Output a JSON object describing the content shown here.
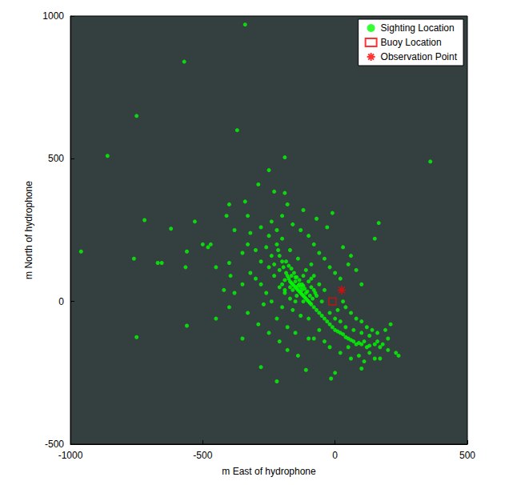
{
  "chart_data": {
    "type": "scatter",
    "x_label": "m East of hydrophone",
    "y_label": "m North of hydrophone",
    "xlim": [
      -1000,
      500
    ],
    "xticks": [
      -1000,
      -500,
      0,
      500
    ],
    "ylim": [
      -500,
      1000
    ],
    "yticks": [
      -500,
      0,
      500,
      1000
    ],
    "grid": false,
    "legend": "upper right",
    "series": [
      {
        "name": "Sighting Location",
        "color": "#00ff00",
        "marker": "circle",
        "x": [
          -340,
          -570,
          -750,
          -860,
          -370,
          -190,
          360,
          -960,
          -720,
          -760,
          -670,
          -655,
          -620,
          -530,
          -560,
          -565,
          -750,
          -560,
          -450,
          -280,
          -220,
          -110,
          -15,
          0,
          100,
          230,
          165,
          150,
          -10,
          -290,
          -250,
          -190,
          -230,
          -330,
          -340,
          -400,
          -480,
          -470,
          -400,
          -395,
          -160,
          -155,
          -150,
          -145,
          -140,
          -135,
          -130,
          -125,
          -120,
          -115,
          -110,
          -105,
          -100,
          -95,
          -90,
          -170,
          -175,
          -180,
          -185,
          -165,
          -150,
          -140,
          -130,
          -160,
          -170,
          -145,
          -125,
          -120,
          -110,
          -135,
          -150,
          -165,
          -190,
          -195,
          -200,
          -210,
          -215,
          -220,
          -120,
          -80,
          -70,
          -60,
          -50,
          -40,
          -30,
          -20,
          -10,
          0,
          10,
          20,
          30,
          40,
          50,
          60,
          70,
          80,
          90,
          100,
          110,
          120,
          130,
          150,
          160,
          170,
          180,
          200,
          140,
          120,
          100,
          80,
          60,
          40,
          30,
          10,
          -20,
          -60,
          -80,
          -40,
          -20,
          20,
          60,
          50,
          90,
          150,
          110,
          -100,
          -130,
          -160,
          -200,
          -240,
          -260,
          -280,
          -300,
          -320,
          -280,
          -250,
          -230,
          -210,
          -190,
          -240,
          -260,
          -300,
          -330,
          -350,
          -320,
          -280,
          -240,
          -200,
          -160,
          -130,
          -100,
          -80,
          -60,
          -40,
          -20,
          0,
          20,
          30,
          60,
          50,
          80,
          100,
          -30,
          -70,
          -120,
          -180,
          -220,
          -350,
          -380,
          -400,
          -330,
          -290,
          -250,
          -210,
          -180,
          -140,
          -100,
          -180,
          -150,
          -350,
          -420,
          -450,
          -380,
          -410,
          -500,
          -220,
          -270,
          -60,
          -40,
          -80,
          -90,
          -200,
          -250,
          -170,
          -140,
          -110,
          -90,
          -70,
          -50,
          0,
          20,
          40,
          70,
          100,
          130,
          160,
          190,
          210,
          240,
          200,
          170,
          130,
          -150,
          -170,
          -190,
          -200,
          -210,
          -230,
          -120,
          -100,
          -90,
          -80,
          -75,
          -85,
          -95,
          -105,
          -115,
          -125,
          -135,
          -145,
          -155,
          -165,
          -175,
          -185
        ],
        "values": [
          970,
          840,
          650,
          510,
          600,
          505,
          490,
          175,
          285,
          150,
          135,
          135,
          255,
          280,
          175,
          120,
          -125,
          -85,
          -60,
          -230,
          -280,
          -240,
          -270,
          -250,
          -235,
          -180,
          275,
          220,
          310,
          410,
          460,
          380,
          385,
          300,
          350,
          340,
          190,
          200,
          135,
          90,
          60,
          55,
          50,
          45,
          40,
          35,
          30,
          25,
          20,
          15,
          10,
          5,
          0,
          -5,
          -10,
          70,
          80,
          90,
          100,
          65,
          70,
          55,
          50,
          40,
          50,
          20,
          40,
          55,
          30,
          60,
          85,
          90,
          75,
          120,
          140,
          160,
          180,
          200,
          0,
          -20,
          -30,
          -40,
          -50,
          -60,
          -70,
          -80,
          -90,
          -100,
          -105,
          -110,
          -115,
          -125,
          -130,
          -135,
          -140,
          -150,
          -145,
          -150,
          -140,
          -160,
          -155,
          -150,
          -140,
          -160,
          -150,
          -130,
          -100,
          -90,
          -70,
          -60,
          -40,
          -20,
          0,
          -30,
          -40,
          -100,
          -130,
          -140,
          -160,
          -180,
          -200,
          -160,
          -190,
          -200,
          -210,
          -60,
          -50,
          -30,
          -20,
          0,
          30,
          60,
          80,
          100,
          140,
          120,
          90,
          50,
          30,
          160,
          190,
          180,
          200,
          170,
          240,
          260,
          280,
          300,
          270,
          250,
          230,
          200,
          170,
          150,
          120,
          100,
          80,
          190,
          160,
          130,
          110,
          60,
          260,
          290,
          320,
          340,
          250,
          60,
          30,
          -20,
          -40,
          -80,
          -110,
          -140,
          -170,
          -190,
          -130,
          -90,
          -110,
          -130,
          40,
          120,
          250,
          300,
          200,
          -60,
          -10,
          60,
          40,
          90,
          130,
          220,
          230,
          180,
          150,
          110,
          80,
          20,
          0,
          -60,
          -70,
          -90,
          -100,
          -110,
          -120,
          -110,
          -100,
          -80,
          -190,
          -170,
          -200,
          -180,
          0,
          10,
          40,
          60,
          110,
          130,
          90,
          70,
          50,
          40,
          30,
          10,
          20,
          35,
          45,
          60,
          75,
          85,
          100,
          115,
          125,
          140
        ]
      },
      {
        "name": "Buoy Location",
        "color": "#ff0000",
        "marker": "square",
        "x": [
          -10
        ],
        "values": [
          0
        ]
      },
      {
        "name": "Observation Point",
        "color": "#ff0000",
        "marker": "asterisk",
        "x": [
          25
        ],
        "values": [
          40
        ]
      }
    ]
  }
}
